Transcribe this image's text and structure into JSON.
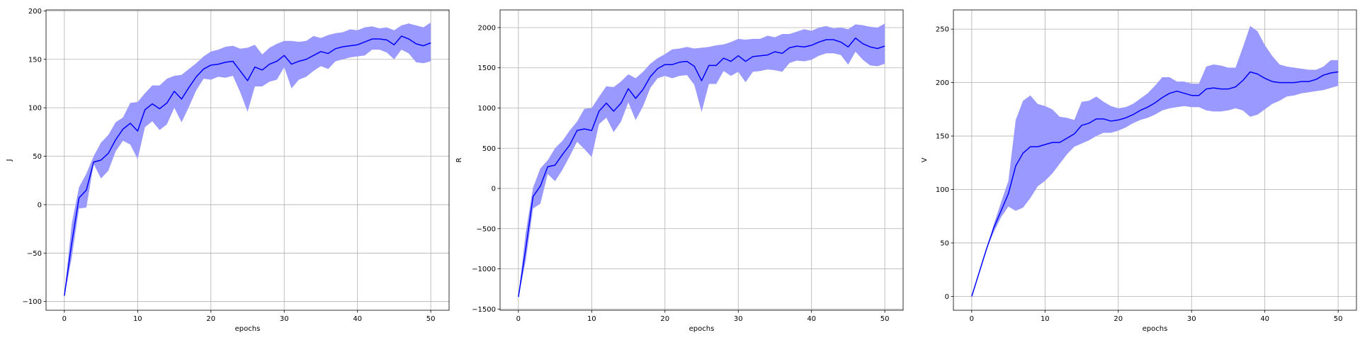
{
  "chart_data": [
    {
      "type": "line",
      "xlabel": "epochs",
      "ylabel": "J",
      "xlim": [
        -2.5,
        52.5
      ],
      "ylim": [
        -109,
        201
      ],
      "xticks": [
        0,
        10,
        20,
        30,
        40,
        50
      ],
      "yticks": [
        -100,
        -50,
        0,
        50,
        100,
        150,
        200
      ],
      "ytick_labels": [
        "−100",
        "−50",
        "0",
        "50",
        "100",
        "150",
        "200"
      ],
      "grid": true,
      "line_color": "#0000ff",
      "band_color": "#9999ff",
      "x": [
        0,
        1,
        2,
        3,
        4,
        5,
        6,
        7,
        8,
        9,
        10,
        11,
        12,
        13,
        14,
        15,
        16,
        17,
        18,
        19,
        20,
        21,
        22,
        23,
        24,
        25,
        26,
        27,
        28,
        29,
        30,
        31,
        32,
        33,
        34,
        35,
        36,
        37,
        38,
        39,
        40,
        41,
        42,
        43,
        44,
        45,
        46,
        47,
        48,
        49,
        50
      ],
      "mean": [
        -94,
        -40,
        7,
        15,
        44,
        46,
        53,
        67,
        78,
        84,
        76,
        98,
        104,
        99,
        105,
        117,
        109,
        121,
        132,
        140,
        144,
        145,
        147,
        148,
        138,
        128,
        142,
        139,
        145,
        148,
        154,
        145,
        148,
        150,
        154,
        158,
        156,
        161,
        163,
        164,
        165,
        168,
        171,
        171,
        170,
        165,
        174,
        171,
        166,
        164,
        167
      ],
      "upper": [
        -93,
        -20,
        18,
        32,
        50,
        64,
        72,
        85,
        90,
        105,
        106,
        115,
        123,
        123,
        130,
        133,
        134,
        140,
        146,
        153,
        158,
        160,
        163,
        164,
        161,
        162,
        165,
        155,
        162,
        166,
        169,
        169,
        168,
        169,
        174,
        172,
        175,
        177,
        178,
        181,
        180,
        183,
        184,
        182,
        183,
        180,
        185,
        187,
        185,
        183,
        188
      ],
      "lower": [
        -95,
        -55,
        -4,
        -3,
        42,
        27,
        35,
        55,
        66,
        62,
        47,
        80,
        86,
        77,
        83,
        100,
        85,
        101,
        118,
        130,
        129,
        132,
        131,
        133,
        116,
        96,
        122,
        122,
        127,
        129,
        142,
        120,
        129,
        132,
        138,
        143,
        140,
        148,
        150,
        152,
        153,
        154,
        160,
        160,
        157,
        150,
        160,
        156,
        147,
        146,
        148
      ]
    },
    {
      "type": "line",
      "xlabel": "epochs",
      "ylabel": "R",
      "xlim": [
        -2.5,
        52.5
      ],
      "ylim": [
        -1515,
        2220
      ],
      "xticks": [
        0,
        10,
        20,
        30,
        40,
        50
      ],
      "yticks": [
        -1500,
        -1000,
        -500,
        0,
        500,
        1000,
        1500,
        2000
      ],
      "ytick_labels": [
        "−1500",
        "−1000",
        "−500",
        "0",
        "500",
        "1000",
        "1500",
        "2000"
      ],
      "grid": true,
      "line_color": "#0000ff",
      "band_color": "#9999ff",
      "x": [
        0,
        1,
        2,
        3,
        4,
        5,
        6,
        7,
        8,
        9,
        10,
        11,
        12,
        13,
        14,
        15,
        16,
        17,
        18,
        19,
        20,
        21,
        22,
        23,
        24,
        25,
        26,
        27,
        28,
        29,
        30,
        31,
        32,
        33,
        34,
        35,
        36,
        37,
        38,
        39,
        40,
        41,
        42,
        43,
        44,
        45,
        46,
        47,
        48,
        49,
        50
      ],
      "mean": [
        -1350,
        -750,
        -100,
        30,
        270,
        290,
        420,
        540,
        720,
        740,
        720,
        960,
        1060,
        960,
        1060,
        1240,
        1120,
        1230,
        1390,
        1490,
        1540,
        1540,
        1570,
        1580,
        1520,
        1340,
        1530,
        1530,
        1620,
        1580,
        1650,
        1580,
        1640,
        1650,
        1660,
        1700,
        1680,
        1750,
        1770,
        1760,
        1780,
        1820,
        1850,
        1850,
        1820,
        1760,
        1870,
        1800,
        1760,
        1740,
        1770
      ],
      "upper": [
        -1340,
        -550,
        10,
        250,
        350,
        500,
        590,
        720,
        830,
        990,
        1000,
        1140,
        1270,
        1260,
        1330,
        1420,
        1370,
        1450,
        1550,
        1620,
        1670,
        1730,
        1740,
        1760,
        1740,
        1750,
        1760,
        1780,
        1790,
        1820,
        1860,
        1850,
        1860,
        1860,
        1900,
        1880,
        1920,
        1920,
        1950,
        1980,
        1960,
        2000,
        2020,
        1990,
        2000,
        1980,
        2040,
        2030,
        2010,
        2000,
        2050
      ],
      "lower": [
        -1360,
        -900,
        -250,
        -190,
        180,
        90,
        230,
        400,
        580,
        490,
        390,
        800,
        880,
        700,
        830,
        1070,
        850,
        1020,
        1250,
        1370,
        1400,
        1370,
        1400,
        1410,
        1290,
        950,
        1300,
        1300,
        1460,
        1400,
        1450,
        1320,
        1450,
        1460,
        1480,
        1470,
        1450,
        1560,
        1590,
        1580,
        1600,
        1650,
        1680,
        1680,
        1660,
        1540,
        1700,
        1600,
        1530,
        1520,
        1550
      ]
    },
    {
      "type": "line",
      "xlabel": "epochs",
      "ylabel": "V",
      "xlim": [
        -2.5,
        52.5
      ],
      "ylim": [
        -13,
        268
      ],
      "xticks": [
        0,
        10,
        20,
        30,
        40,
        50
      ],
      "yticks": [
        0,
        50,
        100,
        150,
        200,
        250
      ],
      "ytick_labels": [
        "0",
        "50",
        "100",
        "150",
        "200",
        "250"
      ],
      "grid": true,
      "line_color": "#0000ff",
      "band_color": "#9999ff",
      "x": [
        0,
        1,
        2,
        3,
        4,
        5,
        6,
        7,
        8,
        9,
        10,
        11,
        12,
        13,
        14,
        15,
        16,
        17,
        18,
        19,
        20,
        21,
        22,
        23,
        24,
        25,
        26,
        27,
        28,
        29,
        30,
        31,
        32,
        33,
        34,
        35,
        36,
        37,
        38,
        39,
        40,
        41,
        42,
        43,
        44,
        45,
        46,
        47,
        48,
        49,
        50
      ],
      "mean": [
        0,
        22,
        44,
        64,
        80,
        96,
        122,
        134,
        140,
        140,
        142,
        144,
        144,
        148,
        152,
        160,
        162,
        166,
        166,
        164,
        165,
        167,
        170,
        174,
        177,
        181,
        186,
        190,
        192,
        190,
        188,
        188,
        194,
        195,
        194,
        194,
        196,
        202,
        210,
        208,
        204,
        201,
        200,
        200,
        200,
        201,
        201,
        203,
        207,
        209,
        210
      ],
      "upper": [
        0,
        22,
        44,
        67,
        88,
        108,
        165,
        183,
        188,
        180,
        178,
        175,
        168,
        167,
        165,
        182,
        183,
        187,
        182,
        178,
        176,
        177,
        180,
        185,
        190,
        197,
        205,
        205,
        201,
        201,
        199,
        199,
        215,
        217,
        216,
        214,
        214,
        233,
        253,
        248,
        235,
        225,
        217,
        215,
        214,
        213,
        212,
        212,
        215,
        221,
        221
      ],
      "lower": [
        0,
        22,
        44,
        60,
        74,
        84,
        80,
        83,
        92,
        103,
        108,
        115,
        124,
        133,
        140,
        143,
        146,
        150,
        153,
        153,
        155,
        158,
        162,
        165,
        167,
        170,
        174,
        176,
        177,
        178,
        177,
        177,
        174,
        173,
        173,
        174,
        176,
        174,
        168,
        170,
        175,
        180,
        183,
        187,
        188,
        190,
        191,
        192,
        193,
        195,
        197
      ]
    }
  ]
}
